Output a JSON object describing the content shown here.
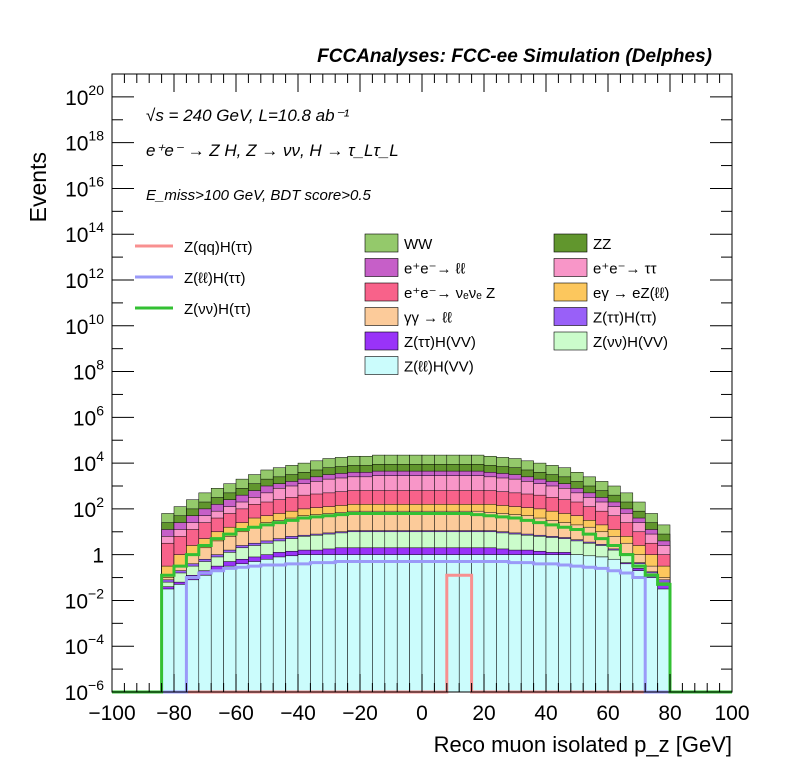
{
  "chart_data": {
    "type": "area",
    "title": "FCCAnalyses: FCC-ee Simulation (Delphes)",
    "xlabel": "Reco muon isolated p_z [GeV]",
    "ylabel": "Events",
    "xlim": [
      -100,
      100
    ],
    "ylim": [
      1e-06,
      1e+21
    ],
    "log_y": true,
    "x_ticks": [
      "−100",
      "−80",
      "−60",
      "−40",
      "−20",
      "0",
      "20",
      "40",
      "60",
      "80",
      "100"
    ],
    "y_ticks": [
      {
        "base": "10",
        "exp": "−6",
        "value": 1e-06
      },
      {
        "base": "10",
        "exp": "−4",
        "value": 0.0001
      },
      {
        "base": "10",
        "exp": "−2",
        "value": 0.01
      },
      {
        "base": "1",
        "exp": "",
        "value": 1
      },
      {
        "base": "10",
        "exp": "2",
        "value": 100.0
      },
      {
        "base": "10",
        "exp": "4",
        "value": 10000.0
      },
      {
        "base": "10",
        "exp": "6",
        "value": 1000000.0
      },
      {
        "base": "10",
        "exp": "8",
        "value": 100000000.0
      },
      {
        "base": "10",
        "exp": "10",
        "value": 10000000000.0
      },
      {
        "base": "10",
        "exp": "12",
        "value": 1000000000000.0
      },
      {
        "base": "10",
        "exp": "14",
        "value": 100000000000000.0
      },
      {
        "base": "10",
        "exp": "16",
        "value": 1e+16
      },
      {
        "base": "10",
        "exp": "18",
        "value": 1e+18
      },
      {
        "base": "10",
        "exp": "20",
        "value": 1e+20
      }
    ],
    "annotations": {
      "line1": "√s = 240 GeV, L=10.8 ab⁻¹",
      "line2": "e⁺e⁻ → Z H, Z → νν, H → τ_Lτ_L",
      "line3": "E_miss>100 GeV, BDT score>0.5"
    },
    "stack_order": [
      "Z(ℓℓ)H(VV)",
      "Z(ττ)H(VV)",
      "Z(νν)H(VV)",
      "Z(ττ)H(ττ)",
      "γγ → ℓℓ",
      "eγ → eZ(ℓℓ)",
      "e⁺e⁻→ νₑνₑ Z",
      "e⁺e⁻→ ττ",
      "e⁺e⁻→ ℓℓ",
      "ZZ",
      "WW"
    ],
    "stacked_legend": [
      {
        "name": "WW",
        "color": "#94c96b"
      },
      {
        "name": "ZZ",
        "color": "#61962d"
      },
      {
        "name": "e⁺e⁻→ ℓℓ",
        "color": "#c65fc8"
      },
      {
        "name": "e⁺e⁻→ ττ",
        "color": "#f896c8"
      },
      {
        "name": "e⁺e⁻→ νₑνₑ Z",
        "color": "#f8628a"
      },
      {
        "name": "eγ → eZ(ℓℓ)",
        "color": "#fcc75d"
      },
      {
        "name": "γγ → ℓℓ",
        "color": "#fccb9a"
      },
      {
        "name": "Z(ττ)H(ττ)",
        "color": "#9960f8"
      },
      {
        "name": "Z(ττ)H(VV)",
        "color": "#9933f8"
      },
      {
        "name": "Z(νν)H(VV)",
        "color": "#cbfccb"
      },
      {
        "name": "Z(ℓℓ)H(VV)",
        "color": "#cbfcfc"
      }
    ],
    "signal_legend": [
      {
        "name": "Z(qq)H(ττ)",
        "color": "#f89090"
      },
      {
        "name": "Z(ℓℓ)H(ττ)",
        "color": "#9a9af8"
      },
      {
        "name": "Z(νν)H(ττ)",
        "color": "#33c033"
      }
    ],
    "bin_edges": [
      -100,
      -96,
      -92,
      -88,
      -84,
      -80,
      -76,
      -72,
      -68,
      -64,
      -60,
      -56,
      -52,
      -48,
      -44,
      -40,
      -36,
      -32,
      -28,
      -24,
      -20,
      -16,
      -12,
      -8,
      -4,
      0,
      4,
      8,
      12,
      16,
      20,
      24,
      28,
      32,
      36,
      40,
      44,
      48,
      52,
      56,
      60,
      64,
      68,
      72,
      76,
      80,
      84,
      88,
      92,
      96,
      100
    ],
    "stack_log10_tops": {
      "Z(ℓℓ)H(VV)": [
        -9,
        -9,
        -9,
        -9,
        -1.5,
        -1.3,
        -1.1,
        -0.9,
        -0.7,
        -0.5,
        -0.4,
        -0.3,
        -0.2,
        -0.1,
        -0.05,
        0,
        0,
        0,
        0,
        0,
        0,
        0,
        0,
        0,
        0,
        0,
        0,
        0,
        0,
        0,
        0,
        0,
        0,
        0,
        0,
        0,
        0,
        0,
        -0.05,
        -0.1,
        -0.2,
        -0.4,
        -0.7,
        -1.0,
        -1.5,
        -9,
        -9,
        -9,
        -9,
        -9
      ],
      "Z(ττ)H(VV)": [
        -9,
        -9,
        -9,
        -9,
        -1.4,
        -1.2,
        -0.9,
        -0.7,
        -0.5,
        -0.3,
        -0.2,
        -0.1,
        0,
        0.1,
        0.15,
        0.2,
        0.2,
        0.25,
        0.3,
        0.3,
        0.3,
        0.3,
        0.3,
        0.3,
        0.3,
        0.3,
        0.3,
        0.3,
        0.3,
        0.3,
        0.3,
        0.25,
        0.2,
        0.2,
        0.15,
        0.1,
        0.1,
        0,
        -0.05,
        -0.1,
        -0.2,
        -0.35,
        -0.6,
        -0.9,
        -1.3,
        -9,
        -9,
        -9,
        -9,
        -9
      ],
      "Z(νν)H(VV)": [
        -9,
        -9,
        -9,
        -9,
        -1.2,
        -0.8,
        -0.5,
        -0.3,
        -0.1,
        0.1,
        0.3,
        0.4,
        0.5,
        0.6,
        0.7,
        0.8,
        0.85,
        0.9,
        0.95,
        1.0,
        1.0,
        1.0,
        1.0,
        1.0,
        1.0,
        1.0,
        1.0,
        1.0,
        1.0,
        1.0,
        1.0,
        0.95,
        0.9,
        0.85,
        0.8,
        0.75,
        0.7,
        0.6,
        0.5,
        0.4,
        0.2,
        0.0,
        -0.4,
        -0.8,
        -1.2,
        -9,
        -9,
        -9,
        -9,
        -9
      ],
      "Z(ττ)H(ττ)": [
        -9,
        -9,
        -9,
        -9,
        -1.1,
        -0.7,
        -0.4,
        -0.2,
        0.0,
        0.2,
        0.4,
        0.5,
        0.6,
        0.7,
        0.8,
        0.85,
        0.9,
        0.95,
        1.0,
        1.05,
        1.05,
        1.05,
        1.05,
        1.05,
        1.05,
        1.05,
        1.05,
        1.05,
        1.05,
        1.05,
        1.05,
        1.0,
        0.95,
        0.9,
        0.85,
        0.8,
        0.75,
        0.65,
        0.55,
        0.45,
        0.25,
        0.05,
        -0.35,
        -0.75,
        -1.1,
        -9,
        -9,
        -9,
        -9,
        -9
      ],
      "γγ → ℓℓ": [
        -9,
        -9,
        -9,
        -9,
        -1.0,
        -0.5,
        0.0,
        0.3,
        0.6,
        0.8,
        1.0,
        1.2,
        1.4,
        1.5,
        1.6,
        1.7,
        1.75,
        1.8,
        1.85,
        1.9,
        1.9,
        1.9,
        1.9,
        1.9,
        1.9,
        1.9,
        1.9,
        1.9,
        1.9,
        1.9,
        1.85,
        1.8,
        1.75,
        1.7,
        1.6,
        1.5,
        1.4,
        1.3,
        1.2,
        1.0,
        0.8,
        0.5,
        0.0,
        -0.5,
        -1.0,
        -9,
        -9,
        -9,
        -9,
        -9
      ],
      "eγ → eZ(ℓℓ)": [
        -9,
        -9,
        -9,
        -9,
        -0.5,
        0.0,
        0.4,
        0.7,
        1.0,
        1.2,
        1.4,
        1.6,
        1.7,
        1.8,
        1.9,
        2.0,
        2.05,
        2.1,
        2.15,
        2.2,
        2.2,
        2.2,
        2.2,
        2.2,
        2.2,
        2.2,
        2.2,
        2.2,
        2.2,
        2.2,
        2.2,
        2.15,
        2.1,
        2.05,
        2.0,
        1.9,
        1.8,
        1.7,
        1.5,
        1.3,
        1.1,
        0.8,
        0.4,
        0.0,
        -0.5,
        -9,
        -9,
        -9,
        -9,
        -9
      ],
      "e⁺e⁻→ νₑνₑ Z": [
        -9,
        -9,
        -9,
        -9,
        0.5,
        0.8,
        1.1,
        1.4,
        1.6,
        1.8,
        2.0,
        2.2,
        2.3,
        2.4,
        2.5,
        2.6,
        2.65,
        2.7,
        2.75,
        2.8,
        2.8,
        2.8,
        2.8,
        2.8,
        2.8,
        2.8,
        2.8,
        2.8,
        2.8,
        2.8,
        2.8,
        2.75,
        2.7,
        2.65,
        2.6,
        2.5,
        2.4,
        2.3,
        2.1,
        1.9,
        1.7,
        1.4,
        1.0,
        0.5,
        0.0,
        -9,
        -9,
        -9,
        -9,
        -9
      ],
      "e⁺e⁻→ ττ": [
        -9,
        -9,
        -9,
        -9,
        0.8,
        1.1,
        1.4,
        1.7,
        1.9,
        2.1,
        2.3,
        2.5,
        2.7,
        2.9,
        3.0,
        3.1,
        3.2,
        3.3,
        3.35,
        3.4,
        3.4,
        3.45,
        3.45,
        3.45,
        3.45,
        3.45,
        3.45,
        3.45,
        3.45,
        3.45,
        3.4,
        3.35,
        3.3,
        3.2,
        3.1,
        3.0,
        2.9,
        2.7,
        2.5,
        2.3,
        2.1,
        1.8,
        1.4,
        0.9,
        0.4,
        -9,
        -9,
        -9,
        -9,
        -9
      ],
      "e⁺e⁻→ ℓℓ": [
        -9,
        -9,
        -9,
        -9,
        1.1,
        1.4,
        1.7,
        2.0,
        2.2,
        2.4,
        2.6,
        2.8,
        3.0,
        3.1,
        3.2,
        3.3,
        3.4,
        3.5,
        3.55,
        3.6,
        3.6,
        3.65,
        3.65,
        3.65,
        3.65,
        3.65,
        3.65,
        3.65,
        3.65,
        3.65,
        3.6,
        3.55,
        3.5,
        3.4,
        3.3,
        3.2,
        3.1,
        2.9,
        2.7,
        2.5,
        2.3,
        2.0,
        1.6,
        1.1,
        0.6,
        -9,
        -9,
        -9,
        -9,
        -9
      ],
      "ZZ": [
        -9,
        -9,
        -9,
        -9,
        1.4,
        1.7,
        2.0,
        2.3,
        2.5,
        2.7,
        2.9,
        3.1,
        3.3,
        3.4,
        3.5,
        3.6,
        3.7,
        3.8,
        3.85,
        3.9,
        3.9,
        3.95,
        3.95,
        3.95,
        3.95,
        3.95,
        3.95,
        3.95,
        3.95,
        3.95,
        3.9,
        3.85,
        3.8,
        3.7,
        3.6,
        3.5,
        3.4,
        3.2,
        3.0,
        2.8,
        2.6,
        2.3,
        1.9,
        1.4,
        0.9,
        -9,
        -9,
        -9,
        -9,
        -9
      ],
      "WW": [
        -9,
        -9,
        -9,
        -9,
        1.8,
        2.1,
        2.4,
        2.7,
        2.9,
        3.1,
        3.3,
        3.5,
        3.7,
        3.8,
        3.9,
        4.0,
        4.1,
        4.2,
        4.25,
        4.3,
        4.3,
        4.35,
        4.35,
        4.35,
        4.35,
        4.35,
        4.35,
        4.35,
        4.35,
        4.35,
        4.3,
        4.25,
        4.2,
        4.1,
        4.0,
        3.9,
        3.8,
        3.6,
        3.4,
        3.2,
        3.0,
        2.7,
        2.3,
        1.8,
        1.3,
        -9,
        -9,
        -9,
        -9,
        -9
      ]
    },
    "signal_log10": {
      "Z(qq)H(ττ)": [
        -9,
        -9,
        -9,
        -9,
        -9,
        -9,
        -9,
        -9,
        -9,
        -9,
        -9,
        -9,
        -9,
        -9,
        -9,
        -9,
        -9,
        -9,
        -9,
        -9,
        -9,
        -9,
        -9,
        -9,
        -9,
        -9,
        -9,
        -0.9,
        -0.9,
        -9,
        -9,
        -9,
        -9,
        -9,
        -9,
        -9,
        -9,
        -9,
        -9,
        -9,
        -9,
        -9,
        -9,
        -9,
        -9,
        -9,
        -9,
        -9,
        -9,
        -9
      ],
      "Z(ℓℓ)H(ττ)": [
        -9,
        -9,
        -9,
        -9,
        -9,
        -9,
        -1.0,
        -0.8,
        -0.7,
        -0.6,
        -0.55,
        -0.5,
        -0.45,
        -0.45,
        -0.4,
        -0.4,
        -0.35,
        -0.35,
        -0.3,
        -0.3,
        -0.3,
        -0.3,
        -0.3,
        -0.3,
        -0.3,
        -0.3,
        -0.3,
        -0.3,
        -0.3,
        -0.3,
        -0.3,
        -0.3,
        -0.35,
        -0.35,
        -0.4,
        -0.4,
        -0.45,
        -0.5,
        -0.55,
        -0.6,
        -0.7,
        -0.8,
        -1.0,
        -9,
        -9,
        -9,
        -9,
        -9,
        -9,
        -9
      ],
      "Z(νν)H(ττ)": [
        -9,
        -9,
        -9,
        -9,
        -0.9,
        -0.5,
        0.0,
        0.4,
        0.7,
        0.9,
        1.1,
        1.2,
        1.3,
        1.4,
        1.5,
        1.6,
        1.65,
        1.7,
        1.75,
        1.8,
        1.8,
        1.8,
        1.8,
        1.8,
        1.8,
        1.8,
        1.8,
        1.8,
        1.8,
        1.75,
        1.7,
        1.65,
        1.6,
        1.5,
        1.4,
        1.3,
        1.2,
        1.1,
        0.9,
        0.7,
        0.4,
        0.0,
        -0.5,
        -0.9,
        -1.3,
        -9,
        -9,
        -9,
        -9,
        -9
      ]
    }
  }
}
